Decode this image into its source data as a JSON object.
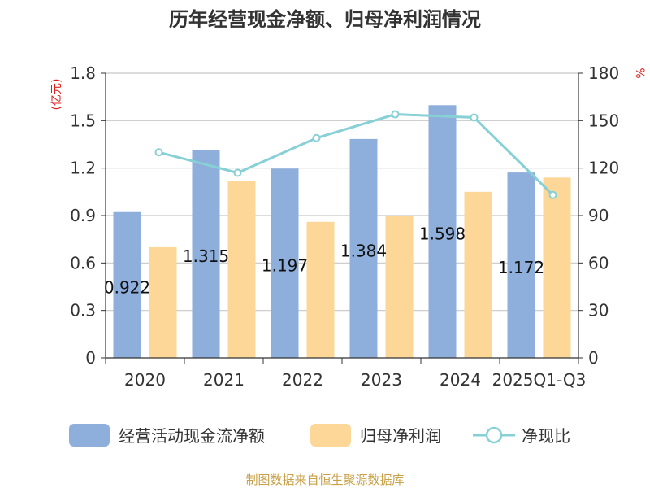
{
  "chart_data": {
    "type": "bar",
    "title": "历年经营现金净额、归母净利润情况",
    "categories": [
      "2020",
      "2021",
      "2022",
      "2023",
      "2024",
      "2025Q1-Q3"
    ],
    "series": [
      {
        "name": "经营活动现金流净额",
        "type": "bar",
        "axis": "left",
        "color": "#8eaedb",
        "values": [
          0.922,
          1.315,
          1.197,
          1.384,
          1.598,
          1.172
        ]
      },
      {
        "name": "归母净利润",
        "type": "bar",
        "axis": "left",
        "color": "#fdd798",
        "values": [
          0.7,
          1.12,
          0.86,
          0.9,
          1.05,
          1.14
        ]
      },
      {
        "name": "净现比",
        "type": "line",
        "axis": "right",
        "color": "#86d0d6",
        "values": [
          130,
          117,
          139,
          154,
          152,
          103
        ]
      }
    ],
    "data_labels": [
      "0.922",
      "1.315",
      "1.197",
      "1.384",
      "1.598",
      "1.172"
    ],
    "y_left": {
      "label": "(亿元)",
      "ylim": [
        0,
        1.8
      ],
      "ticks": [
        "0",
        "0.3",
        "0.6",
        "0.9",
        "1.2",
        "1.5",
        "1.8"
      ]
    },
    "y_right": {
      "label": "%",
      "ylim": [
        0,
        180
      ],
      "ticks": [
        "0",
        "30",
        "60",
        "90",
        "120",
        "150",
        "180"
      ]
    },
    "grid": true,
    "legend_position": "bottom"
  },
  "source": "制图数据来自恒生聚源数据库"
}
